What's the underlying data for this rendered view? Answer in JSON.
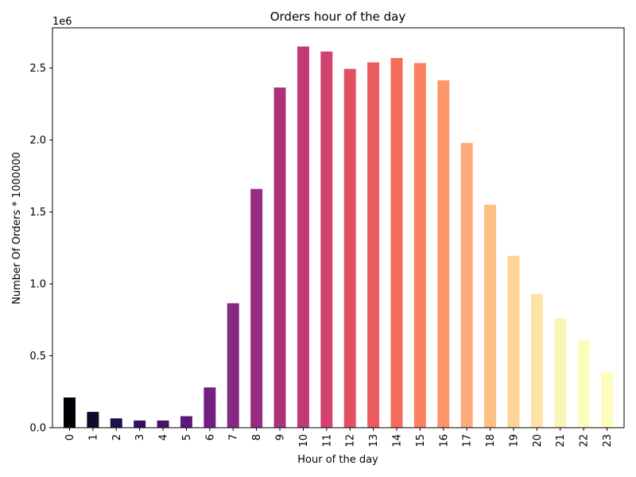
{
  "chart_data": {
    "type": "bar",
    "title": "Orders hour of the day",
    "xlabel": "Hour of the day",
    "ylabel": "Number Of Orders * 1000000",
    "y_multiplier_label": "1e6",
    "y_scale": 1000000,
    "ylim": [
      0,
      2.78
    ],
    "yticks": [
      0.0,
      0.5,
      1.0,
      1.5,
      2.0,
      2.5
    ],
    "ytick_labels": [
      "0.0",
      "0.5",
      "1.0",
      "1.5",
      "2.0",
      "2.5"
    ],
    "categories": [
      "0",
      "1",
      "2",
      "3",
      "4",
      "5",
      "6",
      "7",
      "8",
      "9",
      "10",
      "11",
      "12",
      "13",
      "14",
      "15",
      "16",
      "17",
      "18",
      "19",
      "20",
      "21",
      "22",
      "23"
    ],
    "values": [
      210000,
      110000,
      65000,
      50000,
      50000,
      80000,
      280000,
      865000,
      1660000,
      2365000,
      2650000,
      2615000,
      2495000,
      2540000,
      2570000,
      2535000,
      2415000,
      1980000,
      1550000,
      1195000,
      930000,
      760000,
      610000,
      385000
    ],
    "colors": [
      "#000004",
      "#0d0a2b",
      "#1f0f4a",
      "#360f60",
      "#4a116b",
      "#5f187e",
      "#731f81",
      "#862781",
      "#992c7f",
      "#ad3378",
      "#c03a76",
      "#d1426f",
      "#e15060",
      "#ec5c5f",
      "#f46d5c",
      "#fb8061",
      "#fd966b",
      "#feaa77",
      "#febf84",
      "#fed395",
      "#fde4a6",
      "#fcf4b6",
      "#fdfcbf",
      "#fcfdbf"
    ],
    "legend": "none",
    "grid": false
  }
}
